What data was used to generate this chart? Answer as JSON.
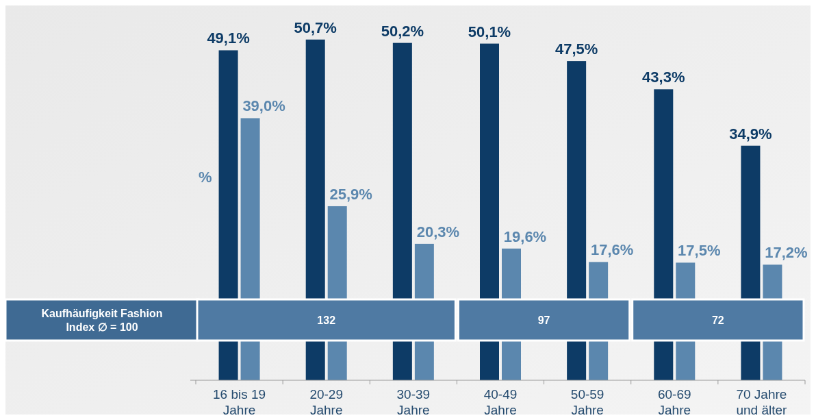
{
  "chart_data": {
    "type": "bar",
    "ylabel": "%",
    "categories": [
      "16 bis 19\nJahre",
      "20-29\nJahre",
      "30-39\nJahre",
      "40-49\nJahre",
      "50-59\nJahre",
      "60-69\nJahre",
      "70 Jahre\nund älter"
    ],
    "series": [
      {
        "color": "#0d3b66",
        "values": [
          49.1,
          50.7,
          50.2,
          50.1,
          47.5,
          43.3,
          34.9
        ],
        "value_labels": [
          "49,1%",
          "50,7%",
          "50,2%",
          "50,1%",
          "47,5%",
          "43,3%",
          "34,9%"
        ]
      },
      {
        "color": "#5b87ae",
        "values": [
          39.0,
          25.9,
          20.3,
          19.6,
          17.6,
          17.5,
          17.2
        ],
        "value_labels": [
          "39,0%",
          "25,9%",
          "20,3%",
          "19,6%",
          "17,6%",
          "17,5%",
          "17,2%"
        ]
      }
    ],
    "annotations": [
      "Kaufhäufigkeit Fashion\nIndex ∅ = 100",
      "132",
      "97",
      "72"
    ]
  }
}
